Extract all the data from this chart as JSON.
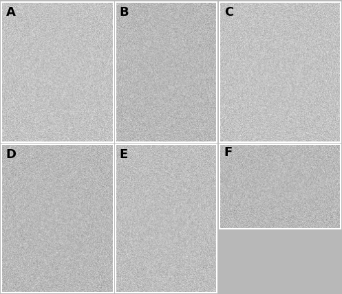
{
  "figure_width": 4.97,
  "figure_height": 4.28,
  "dpi": 100,
  "bg_color": "#b8b8b8",
  "border_color": "#ffffff",
  "border_lw": 1.5,
  "label_fontsize": 13,
  "label_fontweight": "bold",
  "label_color": "#000000",
  "panel_bg": "#c8c8c8",
  "axes": {
    "A": [
      0.004,
      0.516,
      0.328,
      0.478
    ],
    "B": [
      0.338,
      0.516,
      0.295,
      0.478
    ],
    "C": [
      0.641,
      0.516,
      0.355,
      0.478
    ],
    "D": [
      0.004,
      0.004,
      0.328,
      0.506
    ],
    "E": [
      0.338,
      0.004,
      0.295,
      0.506
    ],
    "F": [
      0.641,
      0.222,
      0.355,
      0.288
    ]
  },
  "labels": [
    "A",
    "B",
    "C",
    "D",
    "E",
    "F"
  ]
}
